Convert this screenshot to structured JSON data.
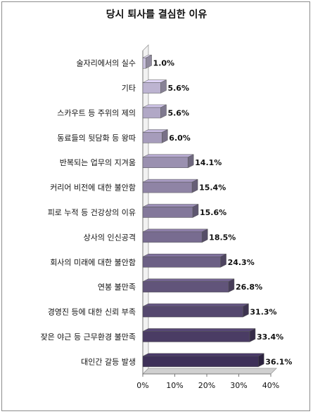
{
  "chart_data": {
    "type": "bar",
    "orientation": "horizontal",
    "title": "당시 퇴사를 결심한 이유",
    "categories": [
      "술자리에서의 실수",
      "기타",
      "스카우트 등 주위의 제의",
      "동료들의 뒷담화 등 왕따",
      "반복되는 업무의 지겨움",
      "커리어 비전에 대한 불안함",
      "피로 누적 등 건강상의 이유",
      "상사의 인신공격",
      "회사의 미래에 대한 불안함",
      "연봉 불만족",
      "경영진 등에 대한 신뢰 부족",
      "잦은 야근 등 근무환경 불만족",
      "대인간 갈등 발생"
    ],
    "values": [
      1.0,
      5.6,
      5.6,
      6.0,
      14.1,
      15.4,
      15.6,
      18.5,
      24.3,
      26.8,
      31.3,
      33.4,
      36.1
    ],
    "value_labels": [
      "1.0%",
      "5.6%",
      "5.6%",
      "6.0%",
      "14.1%",
      "15.4%",
      "15.6%",
      "18.5%",
      "24.3%",
      "26.8%",
      "31.3%",
      "33.4%",
      "36.1%"
    ],
    "xlim": [
      0,
      40
    ],
    "xticks": [
      "0%",
      "10%",
      "20%",
      "30%",
      "40%"
    ],
    "grid": false,
    "colors": {
      "top": "#c8c0dc",
      "bottom": "#3e3059",
      "floor": "#d0d0d0",
      "wall": "#ffffff"
    }
  }
}
